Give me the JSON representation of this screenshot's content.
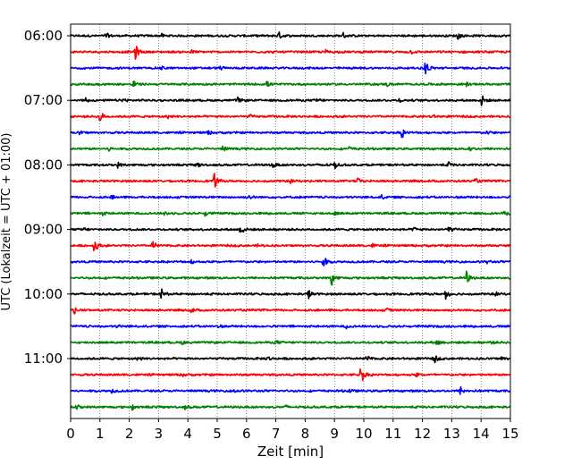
{
  "chart_data": {
    "type": "line",
    "title": "",
    "xlabel": "Zeit  [min]",
    "ylabel": "UTC (Lokalzeit = UTC + 01:00)",
    "xlim": [
      0,
      15
    ],
    "x_ticks": [
      "0",
      "1",
      "2",
      "3",
      "4",
      "5",
      "6",
      "7",
      "8",
      "9",
      "10",
      "11",
      "12",
      "13",
      "14",
      "15"
    ],
    "y_tick_labels": [
      "06:00",
      "07:00",
      "08:00",
      "09:00",
      "10:00",
      "11:00"
    ],
    "y_tick_rows": [
      0,
      4,
      8,
      12,
      16,
      20
    ],
    "row_interval_min": 15,
    "grid": "vertical dotted at each minute",
    "colors": [
      "#000000",
      "#ff0000",
      "#0000ff",
      "#008000"
    ],
    "series": [
      {
        "start": "06:00",
        "events": [
          [
            1.2,
            0.35
          ],
          [
            3.1,
            0.2
          ],
          [
            7.1,
            0.4
          ],
          [
            9.3,
            0.3
          ],
          [
            13.2,
            0.45
          ]
        ]
      },
      {
        "start": "06:15",
        "events": [
          [
            2.2,
            1.0
          ],
          [
            4.1,
            0.2
          ],
          [
            8.7,
            0.2
          ],
          [
            11.6,
            0.2
          ]
        ]
      },
      {
        "start": "06:30",
        "events": [
          [
            3.1,
            0.2
          ],
          [
            5.1,
            0.2
          ],
          [
            12.1,
            1.1
          ]
        ]
      },
      {
        "start": "06:45",
        "events": [
          [
            0.8,
            0.2
          ],
          [
            2.1,
            0.7
          ],
          [
            6.7,
            0.3
          ],
          [
            10.8,
            0.2
          ],
          [
            13.5,
            0.2
          ]
        ]
      },
      {
        "start": "07:00",
        "events": [
          [
            0.5,
            0.35
          ],
          [
            1.8,
            0.3
          ],
          [
            5.7,
            0.3
          ],
          [
            8.4,
            0.25
          ],
          [
            11.2,
            0.2
          ],
          [
            14.0,
            0.8
          ]
        ]
      },
      {
        "start": "07:15",
        "events": [
          [
            1.0,
            0.85
          ],
          [
            3.3,
            0.2
          ],
          [
            6.1,
            0.2
          ],
          [
            12.3,
            0.25
          ]
        ]
      },
      {
        "start": "07:30",
        "events": [
          [
            0.3,
            0.2
          ],
          [
            4.7,
            0.2
          ],
          [
            11.3,
            0.6
          ],
          [
            14.2,
            0.2
          ]
        ]
      },
      {
        "start": "07:45",
        "events": [
          [
            1.3,
            0.25
          ],
          [
            5.2,
            0.3
          ],
          [
            9.5,
            0.2
          ],
          [
            13.6,
            0.3
          ]
        ]
      },
      {
        "start": "08:00",
        "events": [
          [
            1.6,
            0.3
          ],
          [
            4.3,
            0.3
          ],
          [
            6.9,
            0.4
          ],
          [
            8.6,
            0.3
          ],
          [
            9.0,
            0.4
          ],
          [
            12.9,
            0.3
          ]
        ]
      },
      {
        "start": "08:15",
        "events": [
          [
            4.9,
            0.9
          ],
          [
            7.5,
            0.2
          ],
          [
            9.8,
            0.3
          ],
          [
            13.8,
            0.25
          ]
        ]
      },
      {
        "start": "08:30",
        "events": [
          [
            1.4,
            0.2
          ],
          [
            6.1,
            0.2
          ],
          [
            10.6,
            0.2
          ]
        ]
      },
      {
        "start": "08:45",
        "events": [
          [
            1.1,
            0.2
          ],
          [
            3.2,
            0.25
          ],
          [
            4.6,
            0.3
          ],
          [
            9.0,
            0.2
          ],
          [
            14.8,
            0.2
          ]
        ]
      },
      {
        "start": "09:00",
        "events": [
          [
            0.4,
            0.3
          ],
          [
            5.8,
            0.65
          ],
          [
            11.7,
            0.3
          ],
          [
            12.9,
            0.4
          ]
        ]
      },
      {
        "start": "09:15",
        "events": [
          [
            0.8,
            1.0
          ],
          [
            2.8,
            0.6
          ],
          [
            6.4,
            0.2
          ],
          [
            10.3,
            0.2
          ]
        ]
      },
      {
        "start": "09:30",
        "events": [
          [
            4.1,
            0.2
          ],
          [
            8.6,
            0.95
          ],
          [
            14.2,
            0.2
          ]
        ]
      },
      {
        "start": "09:45",
        "events": [
          [
            8.9,
            0.95
          ],
          [
            13.5,
            0.75
          ]
        ]
      },
      {
        "start": "10:00",
        "events": [
          [
            3.1,
            0.6
          ],
          [
            8.1,
            0.6
          ],
          [
            12.8,
            0.6
          ],
          [
            14.5,
            0.2
          ]
        ]
      },
      {
        "start": "10:15",
        "events": [
          [
            0.1,
            0.45
          ],
          [
            4.1,
            0.3
          ],
          [
            10.8,
            0.2
          ]
        ]
      },
      {
        "start": "10:30",
        "events": [
          [
            1.6,
            0.2
          ],
          [
            5.0,
            0.2
          ],
          [
            9.4,
            0.2
          ]
        ]
      },
      {
        "start": "10:45",
        "events": [
          [
            3.8,
            0.2
          ],
          [
            7.0,
            0.25
          ],
          [
            12.5,
            0.45
          ],
          [
            14.3,
            0.2
          ]
        ]
      },
      {
        "start": "11:00",
        "events": [
          [
            2.3,
            0.2
          ],
          [
            6.7,
            0.3
          ],
          [
            10.1,
            0.3
          ],
          [
            12.4,
            0.5
          ],
          [
            14.7,
            0.2
          ]
        ]
      },
      {
        "start": "11:15",
        "events": [
          [
            3.8,
            0.2
          ],
          [
            9.9,
            1.2
          ],
          [
            11.8,
            0.2
          ]
        ]
      },
      {
        "start": "11:30",
        "events": [
          [
            1.4,
            0.25
          ],
          [
            5.5,
            0.35
          ],
          [
            9.5,
            0.2
          ],
          [
            13.3,
            0.45
          ]
        ]
      },
      {
        "start": "11:45",
        "events": [
          [
            0.2,
            0.3
          ],
          [
            2.1,
            0.3
          ],
          [
            3.9,
            0.2
          ],
          [
            7.3,
            0.2
          ]
        ]
      }
    ]
  }
}
